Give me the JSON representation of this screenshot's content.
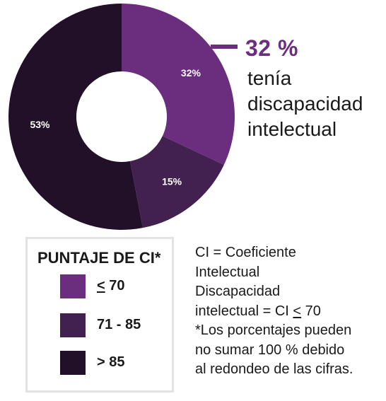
{
  "chart_data": {
    "type": "pie",
    "variant": "donut",
    "categories": [
      "< 70",
      "71 - 85",
      "> 85"
    ],
    "values": [
      32,
      15,
      53
    ],
    "value_labels": [
      "32%",
      "15%",
      "53%"
    ],
    "colors": [
      "#6b2d7e",
      "#42204f",
      "#221029"
    ]
  },
  "callout": {
    "percent": "32 %",
    "lines": [
      "tenía",
      "discapacidad",
      "intelectual"
    ]
  },
  "legend": {
    "title": "PUNTAJE DE CI*",
    "items": [
      {
        "prefix": "",
        "symbol": "<",
        "rest": " 70",
        "color": "#6b2d7e"
      },
      {
        "label": "71 - 85",
        "color": "#42204f"
      },
      {
        "label": "> 85",
        "color": "#221029"
      }
    ]
  },
  "notes": {
    "line1": "CI = Coeficiente",
    "line2": "Intelectual",
    "line3": "Discapacidad",
    "line4_prefix": "intelectual = CI ",
    "line4_symbol": "<",
    "line4_suffix": " 70",
    "line5": "*Los porcentajes pueden",
    "line6": "no sumar 100 % debido",
    "line7": "al redondeo de las cifras."
  }
}
